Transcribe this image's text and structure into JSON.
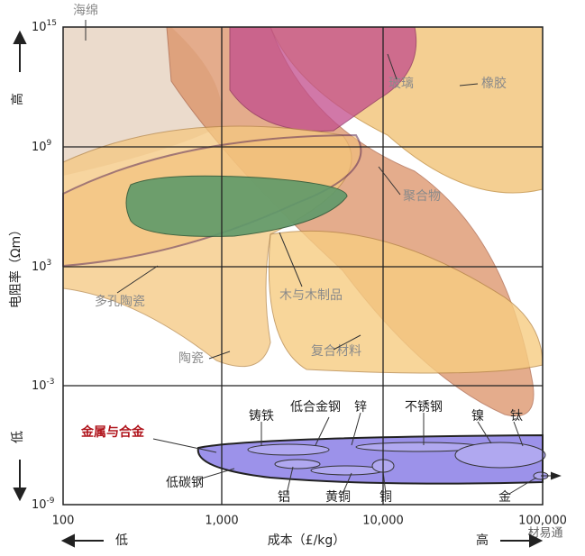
{
  "axes": {
    "y_label": "电阻率（Ωm）",
    "y_high": "高",
    "y_low": "低",
    "x_label": "成本（£/kg）",
    "x_low": "低",
    "x_high": "高",
    "y_ticks": [
      {
        "base": "10",
        "exp": "15"
      },
      {
        "base": "10",
        "exp": "9"
      },
      {
        "base": "10",
        "exp": "3"
      },
      {
        "base": "10",
        "exp": "-3"
      },
      {
        "base": "10",
        "exp": "-9"
      }
    ],
    "x_ticks": [
      "100",
      "1,000",
      "10,000",
      "100,000"
    ]
  },
  "regions": [
    "海绵",
    "玻璃",
    "橡胶",
    "聚合物",
    "多孔陶瓷",
    "木与木制品",
    "陶瓷",
    "复合材料",
    "金属与合金"
  ],
  "metals": [
    "铸铁",
    "低合金钢",
    "锌",
    "不锈钢",
    "镍",
    "钛",
    "低碳钢",
    "铝",
    "黄铜",
    "铜",
    "金"
  ],
  "watermark": "材易通"
}
